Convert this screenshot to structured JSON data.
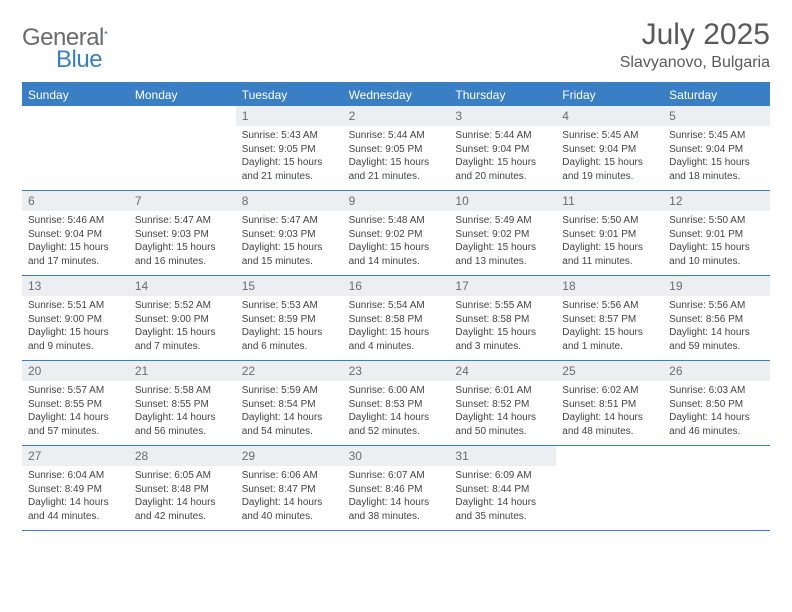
{
  "brand": {
    "part1": "General",
    "part2": "Blue"
  },
  "title": {
    "month": "July 2025",
    "location": "Slavyanovo, Bulgaria"
  },
  "colors": {
    "accent": "#3a7fc4",
    "header_bg": "#3a7fc4",
    "header_text": "#ffffff",
    "daynum_bg": "#eceff1",
    "daynum_text": "#6b6b6b",
    "border": "#3a7fc4",
    "body_text": "#444444",
    "title_text": "#5a5a5a"
  },
  "layout": {
    "columns": 7,
    "font_family": "Arial",
    "day_header_fontsize": 12,
    "daynum_fontsize": 12,
    "body_fontsize": 10,
    "month_fontsize": 30,
    "location_fontsize": 16
  },
  "weekdays": [
    "Sunday",
    "Monday",
    "Tuesday",
    "Wednesday",
    "Thursday",
    "Friday",
    "Saturday"
  ],
  "weeks": [
    [
      null,
      null,
      {
        "n": "1",
        "sunrise": "5:43 AM",
        "sunset": "9:05 PM",
        "daylight": "15 hours and 21 minutes."
      },
      {
        "n": "2",
        "sunrise": "5:44 AM",
        "sunset": "9:05 PM",
        "daylight": "15 hours and 21 minutes."
      },
      {
        "n": "3",
        "sunrise": "5:44 AM",
        "sunset": "9:04 PM",
        "daylight": "15 hours and 20 minutes."
      },
      {
        "n": "4",
        "sunrise": "5:45 AM",
        "sunset": "9:04 PM",
        "daylight": "15 hours and 19 minutes."
      },
      {
        "n": "5",
        "sunrise": "5:45 AM",
        "sunset": "9:04 PM",
        "daylight": "15 hours and 18 minutes."
      }
    ],
    [
      {
        "n": "6",
        "sunrise": "5:46 AM",
        "sunset": "9:04 PM",
        "daylight": "15 hours and 17 minutes."
      },
      {
        "n": "7",
        "sunrise": "5:47 AM",
        "sunset": "9:03 PM",
        "daylight": "15 hours and 16 minutes."
      },
      {
        "n": "8",
        "sunrise": "5:47 AM",
        "sunset": "9:03 PM",
        "daylight": "15 hours and 15 minutes."
      },
      {
        "n": "9",
        "sunrise": "5:48 AM",
        "sunset": "9:02 PM",
        "daylight": "15 hours and 14 minutes."
      },
      {
        "n": "10",
        "sunrise": "5:49 AM",
        "sunset": "9:02 PM",
        "daylight": "15 hours and 13 minutes."
      },
      {
        "n": "11",
        "sunrise": "5:50 AM",
        "sunset": "9:01 PM",
        "daylight": "15 hours and 11 minutes."
      },
      {
        "n": "12",
        "sunrise": "5:50 AM",
        "sunset": "9:01 PM",
        "daylight": "15 hours and 10 minutes."
      }
    ],
    [
      {
        "n": "13",
        "sunrise": "5:51 AM",
        "sunset": "9:00 PM",
        "daylight": "15 hours and 9 minutes."
      },
      {
        "n": "14",
        "sunrise": "5:52 AM",
        "sunset": "9:00 PM",
        "daylight": "15 hours and 7 minutes."
      },
      {
        "n": "15",
        "sunrise": "5:53 AM",
        "sunset": "8:59 PM",
        "daylight": "15 hours and 6 minutes."
      },
      {
        "n": "16",
        "sunrise": "5:54 AM",
        "sunset": "8:58 PM",
        "daylight": "15 hours and 4 minutes."
      },
      {
        "n": "17",
        "sunrise": "5:55 AM",
        "sunset": "8:58 PM",
        "daylight": "15 hours and 3 minutes."
      },
      {
        "n": "18",
        "sunrise": "5:56 AM",
        "sunset": "8:57 PM",
        "daylight": "15 hours and 1 minute."
      },
      {
        "n": "19",
        "sunrise": "5:56 AM",
        "sunset": "8:56 PM",
        "daylight": "14 hours and 59 minutes."
      }
    ],
    [
      {
        "n": "20",
        "sunrise": "5:57 AM",
        "sunset": "8:55 PM",
        "daylight": "14 hours and 57 minutes."
      },
      {
        "n": "21",
        "sunrise": "5:58 AM",
        "sunset": "8:55 PM",
        "daylight": "14 hours and 56 minutes."
      },
      {
        "n": "22",
        "sunrise": "5:59 AM",
        "sunset": "8:54 PM",
        "daylight": "14 hours and 54 minutes."
      },
      {
        "n": "23",
        "sunrise": "6:00 AM",
        "sunset": "8:53 PM",
        "daylight": "14 hours and 52 minutes."
      },
      {
        "n": "24",
        "sunrise": "6:01 AM",
        "sunset": "8:52 PM",
        "daylight": "14 hours and 50 minutes."
      },
      {
        "n": "25",
        "sunrise": "6:02 AM",
        "sunset": "8:51 PM",
        "daylight": "14 hours and 48 minutes."
      },
      {
        "n": "26",
        "sunrise": "6:03 AM",
        "sunset": "8:50 PM",
        "daylight": "14 hours and 46 minutes."
      }
    ],
    [
      {
        "n": "27",
        "sunrise": "6:04 AM",
        "sunset": "8:49 PM",
        "daylight": "14 hours and 44 minutes."
      },
      {
        "n": "28",
        "sunrise": "6:05 AM",
        "sunset": "8:48 PM",
        "daylight": "14 hours and 42 minutes."
      },
      {
        "n": "29",
        "sunrise": "6:06 AM",
        "sunset": "8:47 PM",
        "daylight": "14 hours and 40 minutes."
      },
      {
        "n": "30",
        "sunrise": "6:07 AM",
        "sunset": "8:46 PM",
        "daylight": "14 hours and 38 minutes."
      },
      {
        "n": "31",
        "sunrise": "6:09 AM",
        "sunset": "8:44 PM",
        "daylight": "14 hours and 35 minutes."
      },
      null,
      null
    ]
  ],
  "labels": {
    "sunrise": "Sunrise:",
    "sunset": "Sunset:",
    "daylight": "Daylight:"
  }
}
